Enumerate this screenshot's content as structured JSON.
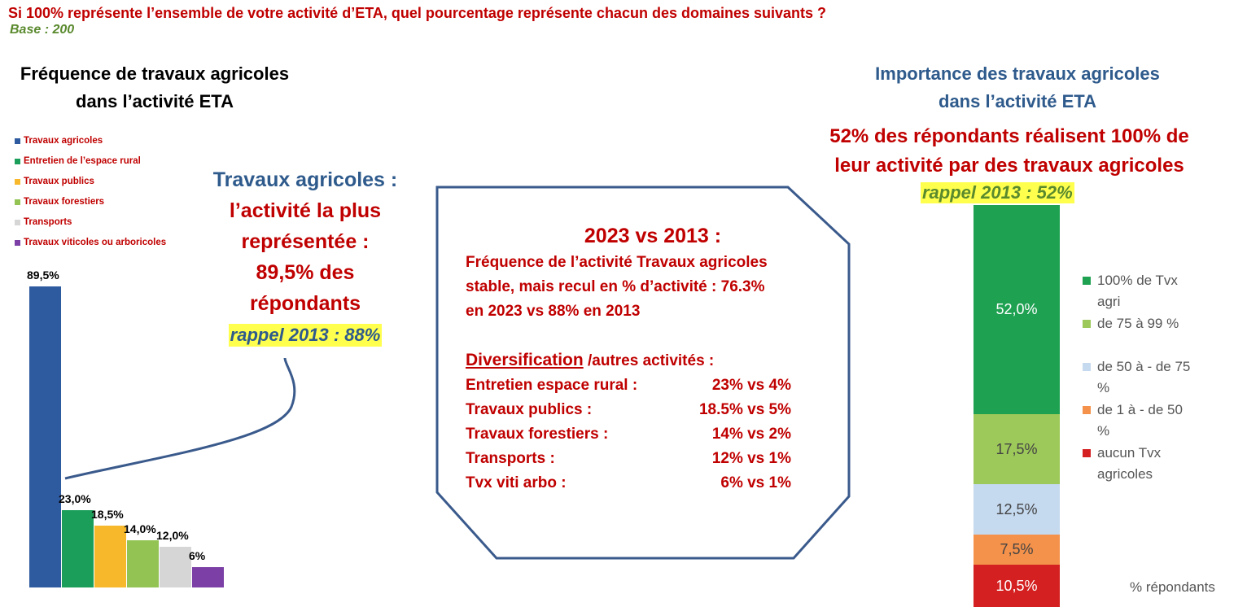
{
  "header": {
    "question": "Si 100% représente l’ensemble de votre activité d’ETA, quel pourcentage représente chacun des domaines suivants ?",
    "base": "Base : 200"
  },
  "chart_data": [
    {
      "type": "bar",
      "title": "Fréquence de travaux agricoles dans l’activité ETA",
      "categories": [
        "Travaux agricoles",
        "Entretien de l’espace rural",
        "Travaux publics",
        "Travaux forestiers",
        "Transports",
        "Travaux viticoles ou arboricoles"
      ],
      "values": [
        89.5,
        23.0,
        18.5,
        14.0,
        12.0,
        6
      ],
      "value_labels": [
        "89,5%",
        "23,0%",
        "18,5%",
        "14,0%",
        "12,0%",
        "6%"
      ],
      "colors": [
        "#2e5aa0",
        "#1a9e5a",
        "#f7b92b",
        "#92c353",
        "#d6d6d6",
        "#7b3fa6"
      ],
      "legend": "top-left"
    },
    {
      "type": "stacked-bar",
      "title": "Importance des travaux agricoles dans l’activité ETA",
      "subtitle": "52% des répondants réalisent 100% de leur activité par des travaux agricoles",
      "note": "rappel 2013 : 52%",
      "y_label": "% répondants",
      "legend": "right",
      "series": [
        {
          "name": "100% de Tvx agri",
          "color": "#1fa152",
          "values": [
            52.0
          ],
          "value_labels": [
            "52,0%"
          ]
        },
        {
          "name": "de 75 à 99 %",
          "color": "#9dc85a",
          "values": [
            17.5
          ],
          "value_labels": [
            "17,5%"
          ]
        },
        {
          "name": "de 50 à - de 75 %",
          "color": "#c5d9ef",
          "values": [
            12.5
          ],
          "value_labels": [
            "12,5%"
          ]
        },
        {
          "name": "de 1 à - de 50 %",
          "color": "#f4914a",
          "values": [
            7.5
          ],
          "value_labels": [
            "7,5%"
          ]
        },
        {
          "name": "aucun Tvx agricoles",
          "color": "#d42020",
          "values": [
            10.5
          ],
          "value_labels": [
            "10,5%"
          ]
        }
      ]
    }
  ],
  "callout": {
    "title": "Travaux agricoles :",
    "lines": [
      "l’activité la plus",
      "représentée :",
      "89,5% des",
      "répondants"
    ],
    "note": "rappel 2013 : 88%"
  },
  "summary": {
    "title": "2023 vs 2013 :",
    "lines": [
      "Fréquence de l’activité Travaux agricoles",
      "stable, mais recul en % d’activité : 76.3%",
      "en 2023 vs 88% en 2013"
    ],
    "heading": "Diversification",
    "heading_suffix": " /autres activités :",
    "rows": [
      [
        "Entretien espace rural :",
        "23% vs 4%"
      ],
      [
        "Travaux publics :",
        "18.5% vs 5%"
      ],
      [
        "Travaux forestiers :",
        "14% vs 2%"
      ],
      [
        "Transports :",
        "12% vs 1%"
      ],
      [
        "Tvx viti arbo :",
        "6% vs 1%"
      ]
    ]
  }
}
